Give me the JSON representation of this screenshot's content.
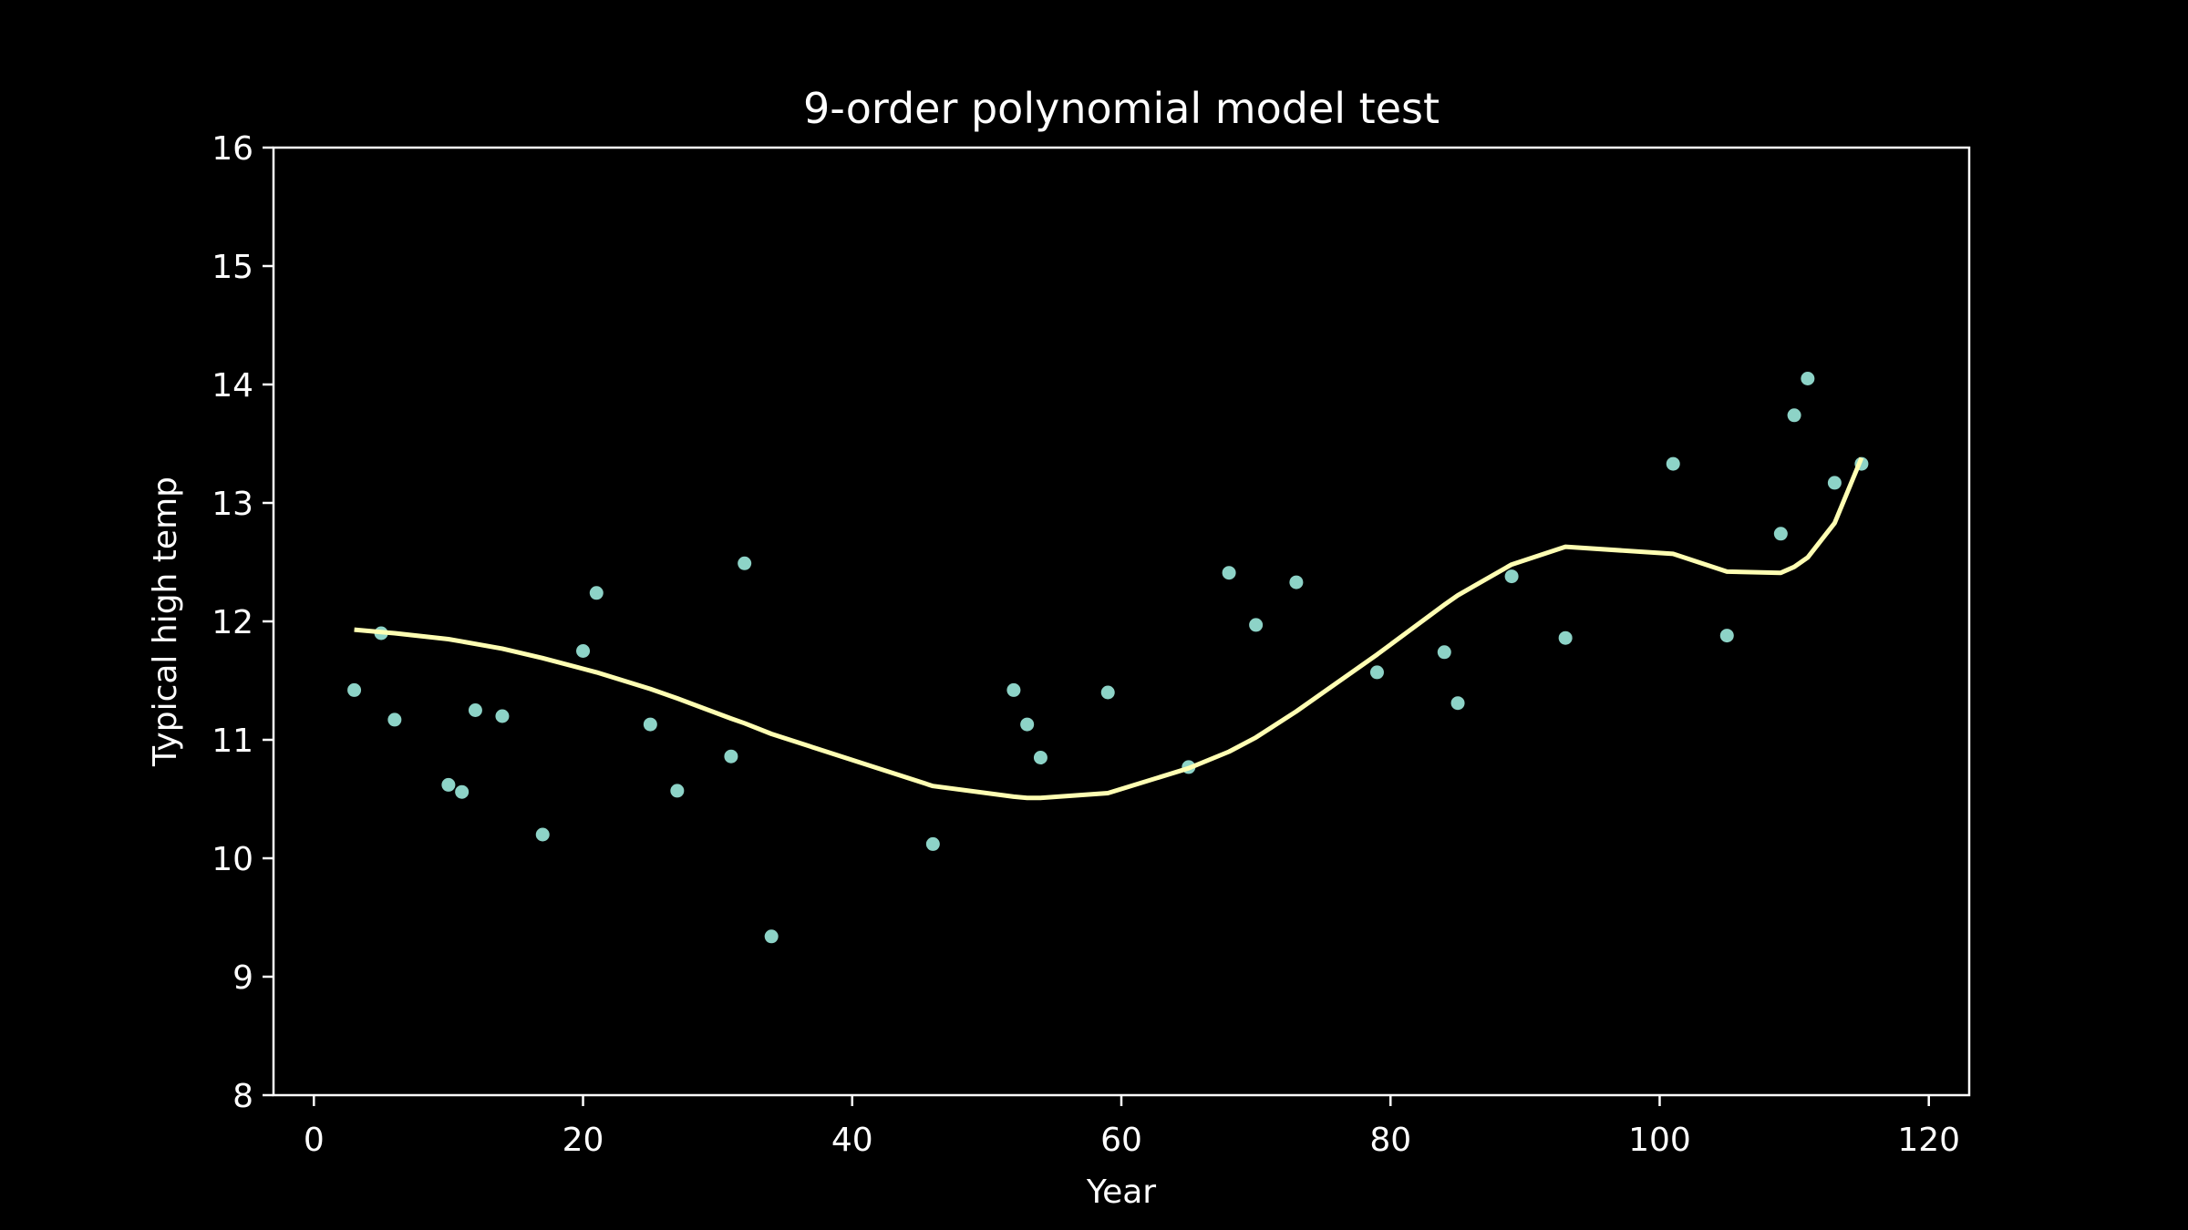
{
  "chart_data": {
    "type": "scatter",
    "title": "9-order polynomial model test",
    "xlabel": "Year",
    "ylabel": "Typical high temp",
    "xlim": [
      -3,
      123
    ],
    "ylim": [
      8,
      16
    ],
    "xticks": [
      0,
      20,
      40,
      60,
      80,
      100,
      120
    ],
    "yticks": [
      8,
      9,
      10,
      11,
      12,
      13,
      14,
      15,
      16
    ],
    "grid": false,
    "legend": "none",
    "colors": {
      "background": "#000000",
      "axes": "#ffffff",
      "points": "#8dd3c7",
      "fit_line": "#ffffb3"
    },
    "series": [
      {
        "kind": "scatter",
        "x": [
          3,
          5,
          6,
          10,
          11,
          12,
          14,
          17,
          20,
          21,
          25,
          27,
          31,
          32,
          34,
          46,
          52,
          53,
          54,
          59,
          65,
          68,
          70,
          73,
          79,
          84,
          85,
          89,
          93,
          101,
          105,
          109,
          110,
          111,
          113,
          115
        ],
        "y": [
          11.42,
          11.9,
          11.17,
          10.62,
          10.56,
          11.25,
          11.2,
          10.2,
          11.75,
          12.24,
          11.13,
          10.57,
          10.86,
          12.49,
          9.34,
          10.12,
          11.42,
          11.13,
          10.85,
          11.4,
          10.77,
          12.41,
          11.97,
          12.33,
          11.57,
          11.74,
          11.31,
          12.38,
          11.86,
          13.33,
          11.88,
          12.74,
          13.74,
          14.05,
          13.17,
          13.33
        ]
      },
      {
        "kind": "line",
        "x": [
          3,
          5,
          6,
          10,
          11,
          12,
          14,
          17,
          20,
          21,
          25,
          27,
          31,
          32,
          34,
          46,
          52,
          53,
          54,
          59,
          65,
          68,
          70,
          73,
          79,
          84,
          85,
          89,
          93,
          101,
          105,
          109,
          110,
          111,
          113,
          115
        ],
        "y": [
          11.93,
          11.91,
          11.9,
          11.85,
          11.83,
          11.81,
          11.77,
          11.69,
          11.6,
          11.57,
          11.43,
          11.35,
          11.18,
          11.14,
          11.05,
          10.61,
          10.52,
          10.51,
          10.51,
          10.55,
          10.76,
          10.9,
          11.02,
          11.24,
          11.72,
          12.14,
          12.22,
          12.48,
          12.63,
          12.57,
          12.42,
          12.41,
          12.46,
          12.54,
          12.83,
          13.38
        ]
      }
    ]
  }
}
